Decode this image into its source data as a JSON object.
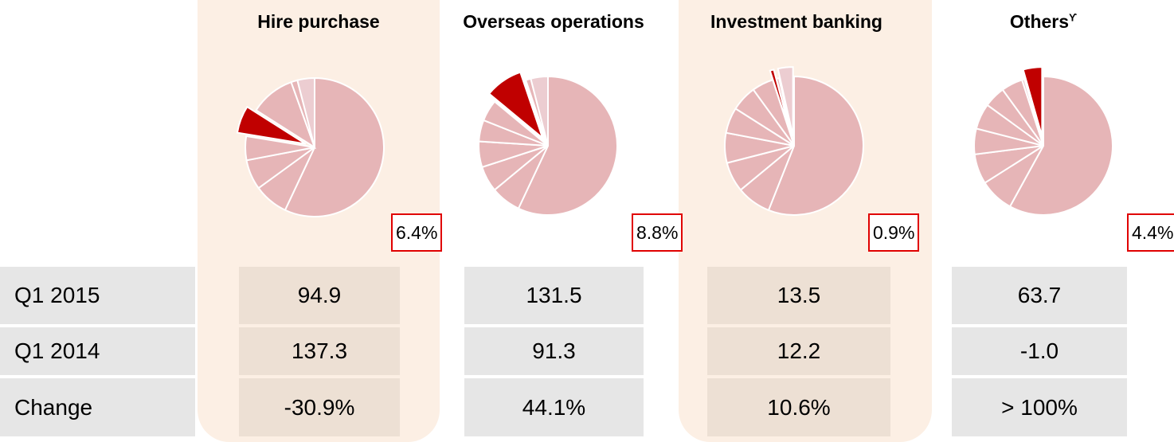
{
  "chart_data": [
    {
      "type": "pie",
      "title": "Hire purchase",
      "values": [
        57,
        8,
        7,
        5.6,
        6.4,
        10.5,
        1.5,
        4
      ],
      "value_labels": [
        null,
        null,
        null,
        null,
        "6.4%",
        null,
        null,
        null
      ],
      "colors": [
        "#e6b5b7",
        "#e6b5b7",
        "#e6b5b7",
        "#e6b5b7",
        "#c00000",
        "#e6b5b7",
        "#e6b5b7",
        "#eccdd1"
      ]
    },
    {
      "type": "pie",
      "title": "Overseas operations",
      "values": [
        57,
        7,
        6,
        6,
        5,
        5,
        8.8,
        1.2,
        4
      ],
      "value_labels": [
        null,
        null,
        null,
        null,
        null,
        null,
        "8.8%",
        null,
        null
      ],
      "colors": [
        "#e6b5b7",
        "#e6b5b7",
        "#e6b5b7",
        "#e6b5b7",
        "#e6b5b7",
        "#e6b5b7",
        "#c00000",
        "#e6b5b7",
        "#eccdd1"
      ]
    },
    {
      "type": "pie",
      "title": "Investment banking",
      "values": [
        56,
        8,
        7,
        7,
        6,
        6,
        5,
        0.9,
        0.6,
        3.5
      ],
      "value_labels": [
        null,
        null,
        null,
        null,
        null,
        null,
        null,
        "0.9%",
        null,
        null
      ],
      "colors": [
        "#e6b5b7",
        "#e6b5b7",
        "#e6b5b7",
        "#e6b5b7",
        "#e6b5b7",
        "#e6b5b7",
        "#e6b5b7",
        "#c00000",
        "#e6b5b7",
        "#eccdd1"
      ]
    },
    {
      "type": "pie",
      "title": "Others",
      "title_superscript": "ϒ",
      "values": [
        58,
        8,
        7,
        6,
        6,
        5,
        5,
        0.6,
        4.4
      ],
      "value_labels": [
        null,
        null,
        null,
        null,
        null,
        null,
        null,
        null,
        "4.4%"
      ],
      "colors": [
        "#e6b5b7",
        "#e6b5b7",
        "#e6b5b7",
        "#e6b5b7",
        "#e6b5b7",
        "#e6b5b7",
        "#e6b5b7",
        "#eccdd1",
        "#c00000"
      ]
    }
  ],
  "table": {
    "rows": [
      {
        "label": "Q1 2015",
        "cells": [
          "94.9",
          "131.5",
          "13.5",
          "63.7"
        ]
      },
      {
        "label": "Q1 2014",
        "cells": [
          "137.3",
          "91.3",
          "12.2",
          "-1.0"
        ]
      },
      {
        "label": "Change",
        "cells": [
          "-30.9%",
          "44.1%",
          "10.6%",
          "> 100%"
        ]
      }
    ]
  }
}
